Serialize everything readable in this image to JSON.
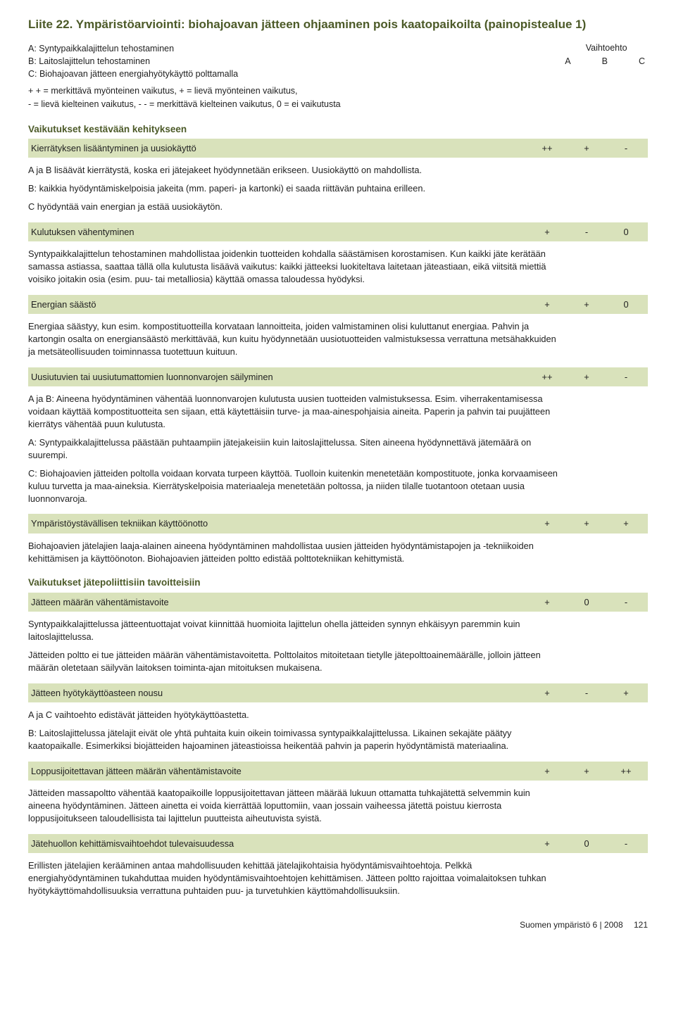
{
  "colors": {
    "accent": "#4c5a28",
    "row_bg": "#d9e2bb",
    "text": "#222222",
    "page_bg": "#ffffff"
  },
  "title": "Liite 22. Ympäristöarviointi: biohajoavan jätteen ohjaaminen pois kaatopaikoilta (painopistealue 1)",
  "keys": {
    "a": "A: Syntypaikkalajittelun tehostaminen",
    "b": "B: Laitoslajittelun tehostaminen",
    "c": "C: Biohajoavan jätteen energiahyötykäyttö polttamalla"
  },
  "option_label": "Vaihtoehto",
  "option_cols": [
    "A",
    "B",
    "C"
  ],
  "legend": {
    "l1": "+ + = merkittävä myönteinen vaikutus, + = lievä myönteinen vaikutus,",
    "l2": "- = lievä kielteinen vaikutus, - - = merkittävä kielteinen vaikutus, 0 = ei vaikutusta"
  },
  "sections": [
    {
      "title": "Vaikutukset kestävään kehitykseen",
      "rows": [
        {
          "label": "Kierrätyksen lisääntyminen ja uusiokäyttö",
          "vals": [
            "++",
            "+",
            "-"
          ],
          "paras": [
            "A ja B lisäävät kierrätystä, koska eri jätejakeet hyödynnetään erikseen. Uusiokäyttö on mahdollista.",
            "B: kaikkia hyödyntämiskelpoisia jakeita (mm. paperi- ja kartonki) ei saada riittävän puhtaina erilleen.",
            "C hyödyntää vain energian ja estää uusiokäytön."
          ]
        },
        {
          "label": "Kulutuksen vähentyminen",
          "vals": [
            "+",
            "-",
            "0"
          ],
          "paras": [
            "Syntypaikkalajittelun tehostaminen mahdollistaa joidenkin tuotteiden kohdalla säästämisen korostamisen. Kun kaikki jäte kerätään samassa astiassa, saattaa tällä olla kulutusta lisäävä vaikutus: kaikki jätteeksi luokiteltava laitetaan jäteastiaan, eikä viitsitä miettiä voisiko joitakin osia (esim. puu- tai metalliosia) käyttää omassa taloudessa hyödyksi."
          ]
        },
        {
          "label": "Energian säästö",
          "vals": [
            "+",
            "+",
            "0"
          ],
          "paras": [
            "Energiaa säästyy, kun esim. kompostituotteilla korvataan lannoitteita, joiden valmistaminen olisi kuluttanut energiaa. Pahvin ja kartongin osalta on energiansäästö merkittävää, kun kuitu hyödynnetään uusiotuotteiden valmistuksessa verrattuna metsähakkuiden ja metsäteollisuuden toiminnassa tuotettuun kuituun."
          ]
        },
        {
          "label": "Uusiutuvien tai uusiutumattomien luonnonvarojen säilyminen",
          "vals": [
            "++",
            "+",
            "-"
          ],
          "paras": [
            "A ja B: Aineena hyödyntäminen vähentää luonnonvarojen kulutusta uusien tuotteiden valmistuksessa. Esim. viherrakentamisessa voidaan käyttää kompostituotteita sen sijaan, että käytettäisiin turve- ja maa-ainespohjaisia aineita. Paperin ja pahvin tai puujätteen kierrätys vähentää puun kulutusta.",
            "A: Syntypaikkalajittelussa päästään puhtaampiin jätejakeisiin kuin laitoslajittelussa. Siten aineena hyödynnettävä jätemäärä on suurempi.",
            "C: Biohajoavien jätteiden poltolla voidaan korvata turpeen käyttöä. Tuolloin kuitenkin menetetään kompostituote, jonka korvaamiseen kuluu turvetta ja maa-aineksia. Kierrätyskelpoisia materiaaleja menetetään poltossa, ja niiden tilalle tuotantoon otetaan uusia luonnonvaroja."
          ]
        },
        {
          "label": "Ympäristöystävällisen tekniikan käyttöönotto",
          "vals": [
            "+",
            "+",
            "+"
          ],
          "paras": [
            "Biohajoavien jätelajien laaja-alainen aineena hyödyntäminen mahdollistaa uusien jätteiden hyödyntämistapojen ja -tekniikoiden kehittämisen ja käyttöönoton. Biohajoavien jätteiden poltto edistää polttotekniikan kehittymistä."
          ]
        }
      ]
    },
    {
      "title": "Vaikutukset jätepoliittisiin tavoitteisiin",
      "rows": [
        {
          "label": "Jätteen määrän vähentämistavoite",
          "vals": [
            "+",
            "0",
            "-"
          ],
          "paras": [
            "Syntypaikkalajittelussa jätteentuottajat voivat kiinnittää huomioita lajittelun ohella jätteiden synnyn ehkäisyyn paremmin kuin laitoslajittelussa.",
            "Jätteiden poltto ei tue jätteiden määrän vähentämistavoitetta. Polttolaitos mitoitetaan tietylle jätepolttoainemäärälle, jolloin jätteen määrän oletetaan säilyvän laitoksen toiminta-ajan mitoituksen mukaisena."
          ]
        },
        {
          "label": "Jätteen hyötykäyttöasteen nousu",
          "vals": [
            "+",
            "-",
            "+"
          ],
          "paras": [
            "A ja C vaihtoehto edistävät jätteiden hyötykäyttöastetta.",
            "B: Laitoslajittelussa jätelajit eivät ole yhtä puhtaita kuin oikein toimivassa syntypaikkalajittelussa. Likainen sekajäte päätyy kaatopaikalle. Esimerkiksi biojätteiden hajoaminen jäteastioissa heikentää pahvin ja paperin hyödyntämistä materiaalina."
          ]
        },
        {
          "label": "Loppusijoitettavan jätteen määrän vähentämistavoite",
          "vals": [
            "+",
            "+",
            "++"
          ],
          "paras": [
            "Jätteiden massapoltto vähentää kaatopaikoille loppusijoitettavan jätteen määrää lukuun ottamatta tuhkajätettä selvemmin kuin aineena hyödyntäminen. Jätteen ainetta ei voida kierrättää loputtomiin, vaan jossain vaiheessa jätettä poistuu kierrosta loppusijoitukseen taloudellisista tai lajittelun puutteista aiheutuvista syistä."
          ]
        },
        {
          "label": "Jätehuollon kehittämisvaihtoehdot tulevaisuudessa",
          "vals": [
            "+",
            "0",
            "-"
          ],
          "paras": [
            "Erillisten jätelajien kerääminen antaa mahdollisuuden kehittää jätelajikohtaisia hyödyntämisvaihtoehtoja. Pelkkä energiahyödyntäminen tukahduttaa muiden hyödyntämisvaihtoehtojen kehittämisen. Jätteen poltto rajoittaa voimalaitoksen tuhkan hyötykäyttömahdollisuuksia verrattuna puhtaiden puu- ja turvetuhkien käyttömahdollisuuksiin."
          ]
        }
      ]
    }
  ],
  "footer": {
    "pub": "Suomen ympäristö 6 | 2008",
    "page": "121"
  }
}
